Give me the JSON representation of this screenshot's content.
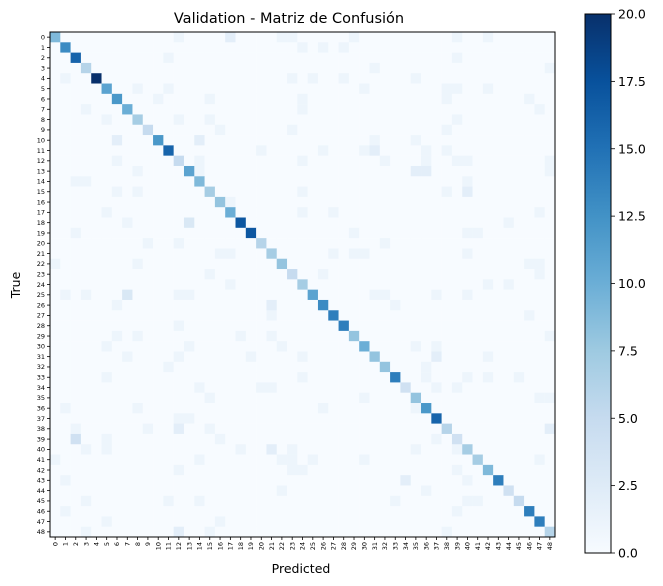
{
  "chart_data": {
    "type": "heatmap",
    "title": "Validation - Matriz de Confusión",
    "xlabel": "Predicted",
    "ylabel": "True",
    "n_classes": 49,
    "row_labels": [
      "0",
      "1",
      "2",
      "3",
      "4",
      "5",
      "6",
      "7",
      "8",
      "9",
      "10",
      "11",
      "12",
      "13",
      "14",
      "15",
      "16",
      "17",
      "18",
      "19",
      "20",
      "21",
      "22",
      "23",
      "24",
      "25",
      "26",
      "27",
      "28",
      "29",
      "30",
      "31",
      "32",
      "33",
      "34",
      "35",
      "36",
      "37",
      "38",
      "39",
      "40",
      "41",
      "42",
      "43",
      "44",
      "45",
      "46",
      "47",
      "48"
    ],
    "col_labels": [
      "0",
      "1",
      "2",
      "3",
      "4",
      "5",
      "6",
      "7",
      "8",
      "9",
      "10",
      "11",
      "12",
      "13",
      "14",
      "15",
      "16",
      "17",
      "18",
      "19",
      "20",
      "21",
      "22",
      "23",
      "24",
      "25",
      "26",
      "27",
      "28",
      "29",
      "30",
      "31",
      "32",
      "33",
      "34",
      "35",
      "36",
      "37",
      "38",
      "39",
      "40",
      "41",
      "42",
      "43",
      "44",
      "45",
      "46",
      "47",
      "48"
    ],
    "diagonal": [
      9,
      13,
      16,
      6,
      20,
      11,
      12,
      10,
      7,
      5,
      12,
      16,
      5,
      11,
      9,
      7,
      8,
      10,
      17,
      17,
      6,
      7,
      8,
      5,
      7,
      11,
      13,
      14,
      14,
      8,
      10,
      8,
      8,
      14,
      4,
      8,
      12,
      16,
      6,
      4,
      7,
      7,
      9,
      14,
      4,
      5,
      14,
      14,
      6
    ],
    "off_diagonal": [
      [
        0,
        12,
        1
      ],
      [
        0,
        17,
        2
      ],
      [
        0,
        22,
        1
      ],
      [
        0,
        23,
        1
      ],
      [
        0,
        29,
        1
      ],
      [
        0,
        39,
        1
      ],
      [
        0,
        42,
        1
      ],
      [
        1,
        24,
        1
      ],
      [
        1,
        26,
        1
      ],
      [
        1,
        28,
        1
      ],
      [
        2,
        11,
        1
      ],
      [
        2,
        39,
        1
      ],
      [
        3,
        31,
        1
      ],
      [
        3,
        48,
        1
      ],
      [
        4,
        1,
        1
      ],
      [
        4,
        23,
        1
      ],
      [
        4,
        25,
        1
      ],
      [
        4,
        28,
        1
      ],
      [
        4,
        35,
        1
      ],
      [
        5,
        8,
        1
      ],
      [
        5,
        11,
        1
      ],
      [
        5,
        30,
        1
      ],
      [
        5,
        38,
        1
      ],
      [
        5,
        39,
        1
      ],
      [
        5,
        42,
        1
      ],
      [
        6,
        10,
        1
      ],
      [
        6,
        15,
        1
      ],
      [
        6,
        24,
        1
      ],
      [
        6,
        38,
        1
      ],
      [
        6,
        46,
        1
      ],
      [
        7,
        3,
        1
      ],
      [
        7,
        24,
        1
      ],
      [
        7,
        47,
        1
      ],
      [
        8,
        5,
        1
      ],
      [
        8,
        12,
        1
      ],
      [
        8,
        15,
        1
      ],
      [
        8,
        39,
        1
      ],
      [
        9,
        16,
        1
      ],
      [
        9,
        23,
        1
      ],
      [
        9,
        38,
        1
      ],
      [
        10,
        6,
        2
      ],
      [
        10,
        14,
        2
      ],
      [
        10,
        31,
        1
      ],
      [
        10,
        35,
        1
      ],
      [
        11,
        20,
        1
      ],
      [
        11,
        26,
        1
      ],
      [
        11,
        30,
        1
      ],
      [
        11,
        31,
        2
      ],
      [
        11,
        36,
        1
      ],
      [
        11,
        38,
        1
      ],
      [
        12,
        6,
        1
      ],
      [
        12,
        14,
        1
      ],
      [
        12,
        24,
        1
      ],
      [
        12,
        32,
        1
      ],
      [
        12,
        36,
        1
      ],
      [
        12,
        39,
        1
      ],
      [
        12,
        40,
        1
      ],
      [
        12,
        48,
        1
      ],
      [
        13,
        8,
        1
      ],
      [
        13,
        14,
        1
      ],
      [
        13,
        35,
        2
      ],
      [
        13,
        36,
        2
      ],
      [
        13,
        48,
        1
      ],
      [
        14,
        2,
        1
      ],
      [
        14,
        3,
        1
      ],
      [
        14,
        40,
        1
      ],
      [
        15,
        6,
        1
      ],
      [
        15,
        8,
        1
      ],
      [
        15,
        24,
        1
      ],
      [
        15,
        38,
        1
      ],
      [
        15,
        40,
        2
      ],
      [
        16,
        17,
        1
      ],
      [
        17,
        5,
        1
      ],
      [
        17,
        24,
        1
      ],
      [
        17,
        27,
        1
      ],
      [
        17,
        47,
        1
      ],
      [
        18,
        7,
        1
      ],
      [
        18,
        13,
        3
      ],
      [
        18,
        44,
        1
      ],
      [
        19,
        2,
        1
      ],
      [
        19,
        29,
        1
      ],
      [
        19,
        40,
        1
      ],
      [
        19,
        41,
        1
      ],
      [
        20,
        9,
        1
      ],
      [
        20,
        12,
        1
      ],
      [
        20,
        32,
        1
      ],
      [
        21,
        16,
        1
      ],
      [
        21,
        17,
        1
      ],
      [
        21,
        27,
        1
      ],
      [
        21,
        29,
        1
      ],
      [
        21,
        30,
        1
      ],
      [
        21,
        40,
        1
      ],
      [
        22,
        0,
        1
      ],
      [
        22,
        8,
        1
      ],
      [
        22,
        46,
        1
      ],
      [
        22,
        47,
        1
      ],
      [
        23,
        15,
        1
      ],
      [
        23,
        26,
        1
      ],
      [
        23,
        47,
        1
      ],
      [
        24,
        17,
        1
      ],
      [
        24,
        42,
        1
      ],
      [
        24,
        44,
        1
      ],
      [
        25,
        1,
        1
      ],
      [
        25,
        3,
        1
      ],
      [
        25,
        7,
        3
      ],
      [
        25,
        12,
        1
      ],
      [
        25,
        13,
        1
      ],
      [
        25,
        31,
        1
      ],
      [
        25,
        32,
        1
      ],
      [
        25,
        37,
        1
      ],
      [
        25,
        40,
        1
      ],
      [
        26,
        6,
        1
      ],
      [
        26,
        21,
        2
      ],
      [
        26,
        33,
        1
      ],
      [
        27,
        21,
        1
      ],
      [
        27,
        46,
        1
      ],
      [
        28,
        12,
        1
      ],
      [
        29,
        6,
        1
      ],
      [
        29,
        8,
        1
      ],
      [
        29,
        18,
        1
      ],
      [
        29,
        21,
        1
      ],
      [
        29,
        48,
        1
      ],
      [
        30,
        5,
        1
      ],
      [
        30,
        13,
        1
      ],
      [
        30,
        22,
        1
      ],
      [
        30,
        35,
        1
      ],
      [
        30,
        37,
        1
      ],
      [
        31,
        7,
        1
      ],
      [
        31,
        12,
        1
      ],
      [
        31,
        19,
        1
      ],
      [
        31,
        24,
        1
      ],
      [
        31,
        37,
        2
      ],
      [
        31,
        42,
        1
      ],
      [
        32,
        11,
        1
      ],
      [
        32,
        36,
        1
      ],
      [
        33,
        5,
        1
      ],
      [
        33,
        24,
        1
      ],
      [
        33,
        36,
        1
      ],
      [
        33,
        40,
        1
      ],
      [
        33,
        42,
        1
      ],
      [
        33,
        45,
        1
      ],
      [
        34,
        14,
        1
      ],
      [
        34,
        20,
        1
      ],
      [
        34,
        21,
        1
      ],
      [
        34,
        37,
        1
      ],
      [
        34,
        39,
        1
      ],
      [
        35,
        15,
        1
      ],
      [
        35,
        30,
        1
      ],
      [
        35,
        47,
        1
      ],
      [
        35,
        48,
        1
      ],
      [
        36,
        1,
        1
      ],
      [
        36,
        8,
        1
      ],
      [
        36,
        26,
        1
      ],
      [
        36,
        35,
        1
      ],
      [
        37,
        12,
        1
      ],
      [
        37,
        13,
        1
      ],
      [
        38,
        2,
        1
      ],
      [
        38,
        9,
        1
      ],
      [
        38,
        12,
        2
      ],
      [
        38,
        15,
        1
      ],
      [
        38,
        48,
        2
      ],
      [
        39,
        2,
        4
      ],
      [
        39,
        5,
        1
      ],
      [
        39,
        16,
        1
      ],
      [
        39,
        37,
        1
      ],
      [
        40,
        3,
        1
      ],
      [
        40,
        5,
        1
      ],
      [
        40,
        18,
        1
      ],
      [
        40,
        21,
        2
      ],
      [
        40,
        23,
        1
      ],
      [
        40,
        35,
        1
      ],
      [
        40,
        39,
        1
      ],
      [
        41,
        0,
        1
      ],
      [
        41,
        14,
        1
      ],
      [
        41,
        22,
        1
      ],
      [
        41,
        23,
        1
      ],
      [
        41,
        25,
        1
      ],
      [
        41,
        30,
        1
      ],
      [
        41,
        47,
        1
      ],
      [
        42,
        12,
        1
      ],
      [
        42,
        23,
        1
      ],
      [
        42,
        24,
        1
      ],
      [
        42,
        39,
        1
      ],
      [
        43,
        1,
        1
      ],
      [
        43,
        34,
        2
      ],
      [
        43,
        40,
        1
      ],
      [
        44,
        22,
        1
      ],
      [
        44,
        36,
        1
      ],
      [
        45,
        3,
        1
      ],
      [
        45,
        11,
        1
      ],
      [
        45,
        14,
        1
      ],
      [
        45,
        33,
        1
      ],
      [
        45,
        40,
        1
      ],
      [
        45,
        41,
        1
      ],
      [
        46,
        1,
        1
      ],
      [
        46,
        39,
        1
      ],
      [
        47,
        5,
        1
      ],
      [
        47,
        16,
        1
      ],
      [
        48,
        3,
        1
      ],
      [
        48,
        12,
        2
      ],
      [
        48,
        15,
        1
      ],
      [
        48,
        38,
        1
      ]
    ],
    "colorbar": {
      "min": 0,
      "max": 20,
      "ticks": [
        "0.0",
        "2.5",
        "5.0",
        "7.5",
        "10.0",
        "12.5",
        "15.0",
        "17.5",
        "20.0"
      ],
      "colormap": "Blues"
    },
    "colors": {
      "low": "#f7fbff",
      "high": "#08306b"
    }
  }
}
